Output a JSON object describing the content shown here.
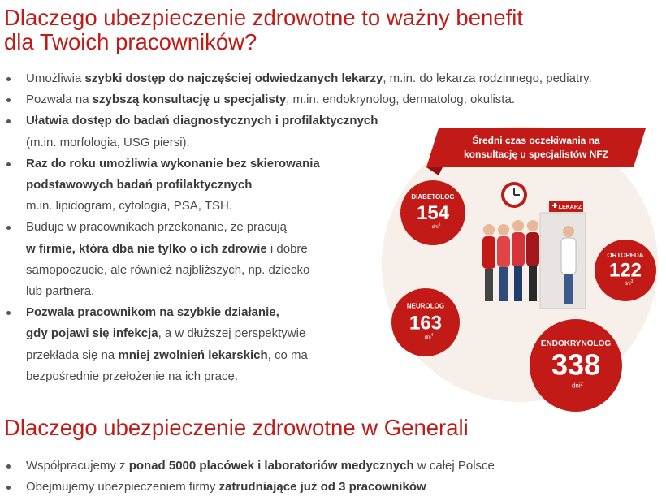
{
  "heading1": {
    "lines": [
      "Dlaczego ubezpieczenie zdrowotne to ważny benefit",
      "dla Twoich pracowników?"
    ]
  },
  "section1": {
    "bullets": [
      {
        "lines": [
          [
            {
              "text": "Umożliwia ",
              "bold": false
            },
            {
              "text": "szybki dostęp do najczęściej odwiedzanych lekarzy",
              "bold": true
            },
            {
              "text": ", m.in. do lekarza rodzinnego, pediatry.",
              "bold": false
            }
          ]
        ]
      },
      {
        "lines": [
          [
            {
              "text": "Pozwala na ",
              "bold": false
            },
            {
              "text": "szybszą konsultację u specjalisty",
              "bold": true
            },
            {
              "text": ", m.in. endokrynolog, dermatolog, okulista.",
              "bold": false
            }
          ]
        ]
      },
      {
        "lines": [
          [
            {
              "text": "Ułatwia dostęp do badań diagnostycznych i profilaktycznych",
              "bold": true
            }
          ],
          [
            {
              "text": "(m.in. morfologia, USG piersi).",
              "bold": false
            }
          ]
        ]
      },
      {
        "lines": [
          [
            {
              "text": "Raz do roku umożliwia wykonanie bez skierowania",
              "bold": true
            }
          ],
          [
            {
              "text": "podstawowych badań profilaktycznych",
              "bold": true
            }
          ],
          [
            {
              "text": "m.in. lipidogram, cytologia, PSA, TSH.",
              "bold": false
            }
          ]
        ]
      },
      {
        "lines": [
          [
            {
              "text": "Buduje w pracownikach przekonanie, że pracują",
              "bold": false
            }
          ],
          [
            {
              "text": "w firmie, która dba nie tylko o ich zdrowie",
              "bold": true
            },
            {
              "text": " i dobre",
              "bold": false
            }
          ],
          [
            {
              "text": "samopoczucie, ale również najbliższych, np. dziecko",
              "bold": false
            }
          ],
          [
            {
              "text": "lub partnera.",
              "bold": false
            }
          ]
        ]
      },
      {
        "lines": [
          [
            {
              "text": "Pozwala pracownikom na szybkie działanie,",
              "bold": true
            }
          ],
          [
            {
              "text": "gdy pojawi się infekcja",
              "bold": true
            },
            {
              "text": ", a w dłuższej perspektywie",
              "bold": false
            }
          ],
          [
            {
              "text": "przekłada się na ",
              "bold": false
            },
            {
              "text": "mniej zwolnień lekarskich",
              "bold": true
            },
            {
              "text": ", co ma",
              "bold": false
            }
          ],
          [
            {
              "text": "bezpośrednie przełożenie na ich pracę.",
              "bold": false
            }
          ]
        ]
      }
    ]
  },
  "infographic": {
    "banner": [
      "Średni czas oczekiwania na",
      "konsultację u specjalistów NFZ"
    ],
    "sign": "LEKARZ",
    "specialists": [
      {
        "name": "DIABETOLOG",
        "days": 154,
        "unit": "dni",
        "note": "1"
      },
      {
        "name": "ORTOPEDA",
        "days": 122,
        "unit": "dni",
        "note": "3"
      },
      {
        "name": "NEUROLOG",
        "days": 163,
        "unit": "dni",
        "note": "4"
      },
      {
        "name": "ENDOKRYNOLOG",
        "days": 338,
        "unit": "dni",
        "note": "2"
      }
    ]
  },
  "heading2": "Dlaczego ubezpieczenie zdrowotne w Generali",
  "section2": {
    "bullets": [
      {
        "lines": [
          [
            {
              "text": "Współpracujemy z ",
              "bold": false
            },
            {
              "text": "ponad 5000 placówek i laboratoriów medycznych",
              "bold": true
            },
            {
              "text": " w całej Polsce",
              "bold": false
            }
          ]
        ]
      },
      {
        "lines": [
          [
            {
              "text": "Obejmujemy ubezpieczeniem firmy ",
              "bold": false
            },
            {
              "text": "zatrudniające już od 3 pracowników",
              "bold": true
            }
          ]
        ]
      }
    ]
  }
}
